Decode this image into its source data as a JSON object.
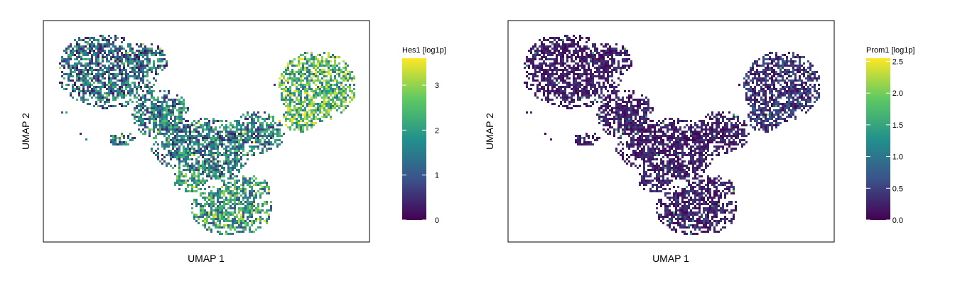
{
  "chart_data": [
    {
      "type": "scatter",
      "subtype": "umap-hexbin",
      "title": "",
      "xlabel": "UMAP 1",
      "ylabel": "UMAP 2",
      "x_ticks_shown": false,
      "y_ticks_shown": false,
      "grid": false,
      "legend": {
        "type": "colorbar",
        "placement": "right",
        "title": "Hes1 [log1p]",
        "range": [
          0,
          3.6
        ],
        "ticks": [
          {
            "value": 0,
            "label": "0"
          },
          {
            "value": 1,
            "label": "1"
          },
          {
            "value": 2,
            "label": "2"
          },
          {
            "value": 3,
            "label": "3"
          }
        ]
      },
      "colormap": "viridis",
      "colormap_stops": [
        "#440154",
        "#3b528b",
        "#21918c",
        "#5ec962",
        "#fde725"
      ],
      "cluster_expression": [
        {
          "region": "upper-left",
          "mean": 1.3
        },
        {
          "region": "center",
          "mean": 1.5
        },
        {
          "region": "upper-right",
          "mean": 2.4
        },
        {
          "region": "bottom",
          "mean": 2.0
        }
      ]
    },
    {
      "type": "scatter",
      "subtype": "umap-hexbin",
      "title": "",
      "xlabel": "UMAP 1",
      "ylabel": "UMAP 2",
      "x_ticks_shown": false,
      "y_ticks_shown": false,
      "grid": false,
      "legend": {
        "type": "colorbar",
        "placement": "right",
        "title": "Prom1 [log1p]",
        "range": [
          0,
          2.55
        ],
        "ticks": [
          {
            "value": 0.0,
            "label": "0.0"
          },
          {
            "value": 0.5,
            "label": "0.5"
          },
          {
            "value": 1.0,
            "label": "1.0"
          },
          {
            "value": 1.5,
            "label": "1.5"
          },
          {
            "value": 2.0,
            "label": "2.0"
          },
          {
            "value": 2.5,
            "label": "2.5"
          }
        ]
      },
      "colormap": "viridis",
      "colormap_stops": [
        "#440154",
        "#3b528b",
        "#21918c",
        "#5ec962",
        "#fde725"
      ],
      "cluster_expression": [
        {
          "region": "upper-left",
          "mean": 0.3
        },
        {
          "region": "center",
          "mean": 0.3
        },
        {
          "region": "upper-right",
          "mean": 0.5
        },
        {
          "region": "bottom",
          "mean": 0.35
        }
      ]
    }
  ]
}
